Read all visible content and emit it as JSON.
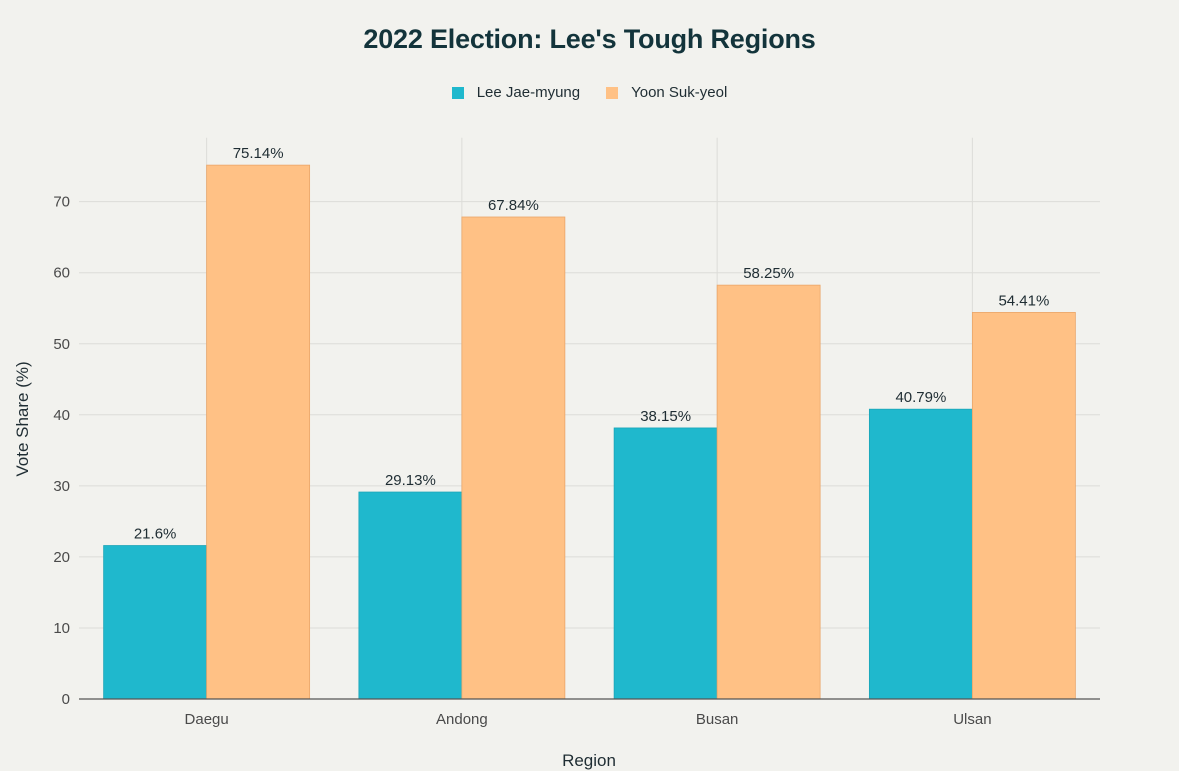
{
  "chart_data": {
    "type": "bar",
    "title": "2022 Election: Lee's Tough Regions",
    "xlabel": "Region",
    "ylabel": "Vote Share (%)",
    "categories": [
      "Daegu",
      "Andong",
      "Busan",
      "Ulsan"
    ],
    "ylim": [
      0,
      79
    ],
    "yticks": [
      0,
      10,
      20,
      30,
      40,
      50,
      60,
      70
    ],
    "grid": true,
    "legend_position": "top-center",
    "series": [
      {
        "name": "Lee Jae-myung",
        "color": "#1fb8cd",
        "values": [
          21.6,
          29.13,
          38.15,
          40.79
        ],
        "labels": [
          "21.6%",
          "29.13%",
          "38.15%",
          "40.79%"
        ]
      },
      {
        "name": "Yoon Suk-yeol",
        "color": "#ffc185",
        "values": [
          75.14,
          67.84,
          58.25,
          54.41
        ],
        "labels": [
          "75.14%",
          "67.84%",
          "58.25%",
          "54.41%"
        ]
      }
    ]
  }
}
